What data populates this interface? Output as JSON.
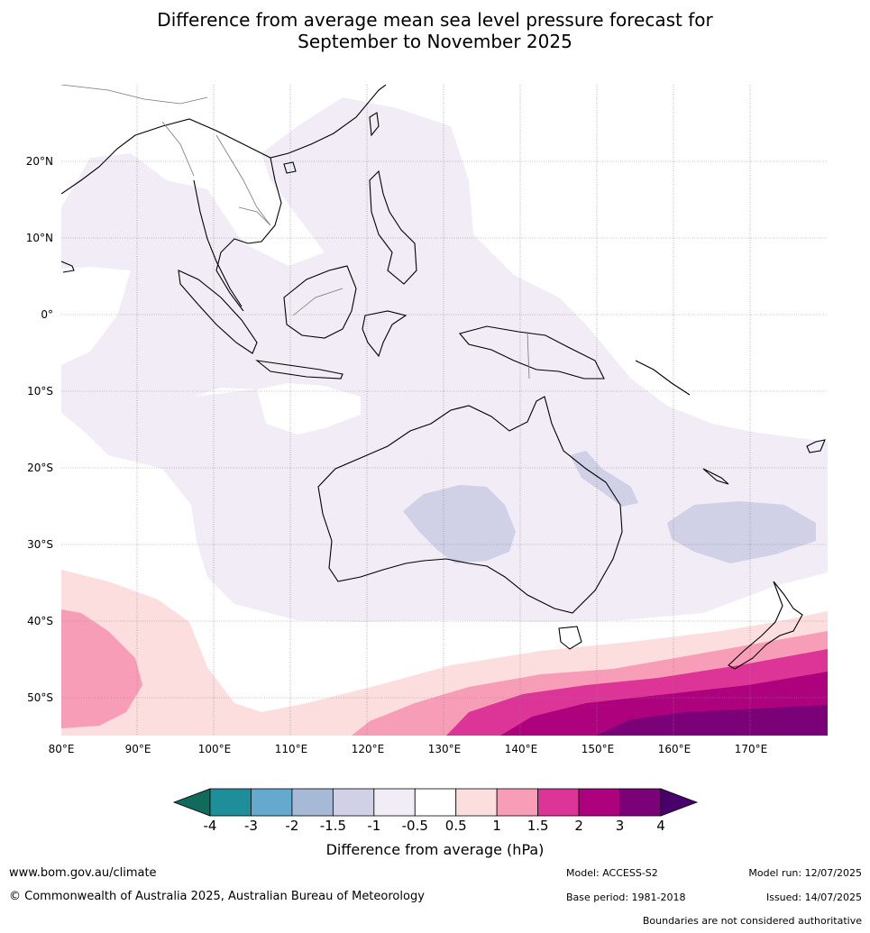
{
  "title": {
    "line1": "Difference from average mean sea level pressure forecast for",
    "line2": "September to November 2025"
  },
  "map": {
    "lon_ticks": [
      "80°E",
      "90°E",
      "100°E",
      "110°E",
      "120°E",
      "130°E",
      "140°E",
      "150°E",
      "160°E",
      "170°E"
    ],
    "lat_ticks": [
      "20°N",
      "10°N",
      "0°",
      "10°S",
      "20°S",
      "30°S",
      "40°S",
      "50°S"
    ],
    "lon_range": [
      80,
      180
    ],
    "lat_range": [
      -55,
      30
    ]
  },
  "colorbar": {
    "title": "Difference from average (hPa)",
    "ticks": [
      "-4",
      "-3",
      "-2",
      "-1.5",
      "-1",
      "-0.5",
      "0.5",
      "1",
      "1.5",
      "2",
      "3",
      "4"
    ],
    "colors": [
      "#116b5c",
      "#1e8f9a",
      "#66a9cf",
      "#a6b9d6",
      "#d0d1e6",
      "#f1ecf5",
      "#ffffff",
      "#fddede",
      "#f89db7",
      "#dd3497",
      "#ae017e",
      "#7a0177",
      "#49006a"
    ]
  },
  "footer": {
    "website": "www.bom.gov.au/climate",
    "copyright": "© Commonwealth of Australia 2025, Australian Bureau of Meteorology",
    "model": "Model: ACCESS-S2",
    "base_period": "Base period: 1981-2018",
    "model_run": "Model run: 12/07/2025",
    "issued": "Issued: 14/07/2025",
    "disclaimer": "Boundaries are not considered authoritative"
  }
}
